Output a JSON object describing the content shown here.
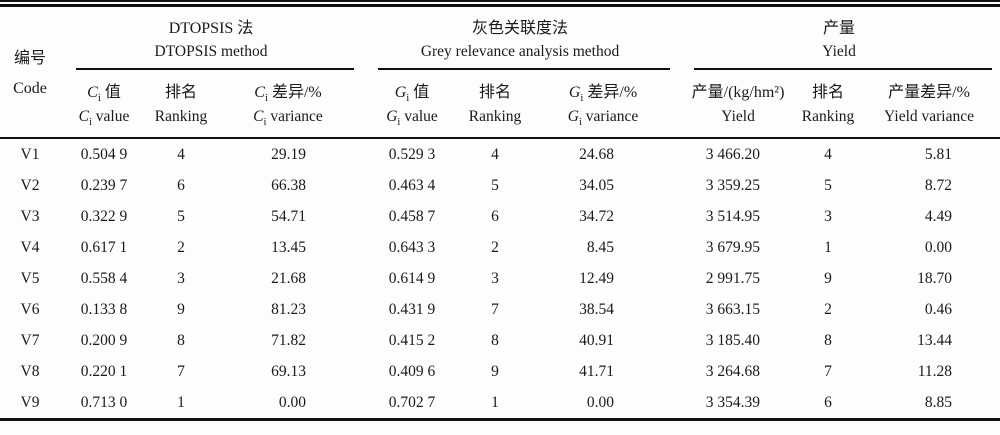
{
  "table": {
    "corner": {
      "zh": "编号",
      "en": "Code"
    },
    "groups": [
      {
        "zh": "DTOPSIS 法",
        "en": "DTOPSIS method"
      },
      {
        "zh": "灰色关联度法",
        "en": "Grey relevance analysis method"
      },
      {
        "zh": "产量",
        "en": "Yield"
      }
    ],
    "subheaders": [
      {
        "zh_sym": "C",
        "zh_sub": "i",
        "zh_rest": " 值",
        "en_sym": "C",
        "en_sub": "i",
        "en_rest": " value"
      },
      {
        "zh": "排名",
        "en": "Ranking"
      },
      {
        "zh_sym": "C",
        "zh_sub": "i",
        "zh_rest": " 差异/%",
        "en_sym": "C",
        "en_sub": "i",
        "en_rest": " variance"
      },
      {
        "zh_sym": "G",
        "zh_sub": "i",
        "zh_rest": " 值",
        "en_sym": "G",
        "en_sub": "i",
        "en_rest": " value"
      },
      {
        "zh": "排名",
        "en": "Ranking"
      },
      {
        "zh_sym": "G",
        "zh_sub": "i",
        "zh_rest": " 差异/%",
        "en_sym": "G",
        "en_sub": "i",
        "en_rest": " variance"
      },
      {
        "zh": "产量/(kg/hm²)",
        "en": "Yield"
      },
      {
        "zh": "排名",
        "en": "Ranking"
      },
      {
        "zh": "产量差异/%",
        "en": "Yield variance"
      }
    ],
    "rows": [
      {
        "code": "V1",
        "values": [
          "0.504 9",
          "4",
          "29.19",
          "0.529 3",
          "4",
          "24.68",
          "3 466.20",
          "4",
          "5.81"
        ]
      },
      {
        "code": "V2",
        "values": [
          "0.239 7",
          "6",
          "66.38",
          "0.463 4",
          "5",
          "34.05",
          "3 359.25",
          "5",
          "8.72"
        ]
      },
      {
        "code": "V3",
        "values": [
          "0.322 9",
          "5",
          "54.71",
          "0.458 7",
          "6",
          "34.72",
          "3 514.95",
          "3",
          "4.49"
        ]
      },
      {
        "code": "V4",
        "values": [
          "0.617 1",
          "2",
          "13.45",
          "0.643 3",
          "2",
          "8.45",
          "3 679.95",
          "1",
          "0.00"
        ]
      },
      {
        "code": "V5",
        "values": [
          "0.558 4",
          "3",
          "21.68",
          "0.614 9",
          "3",
          "12.49",
          "2 991.75",
          "9",
          "18.70"
        ]
      },
      {
        "code": "V6",
        "values": [
          "0.133 8",
          "9",
          "81.23",
          "0.431 9",
          "7",
          "38.54",
          "3 663.15",
          "2",
          "0.46"
        ]
      },
      {
        "code": "V7",
        "values": [
          "0.200 9",
          "8",
          "71.82",
          "0.415 2",
          "8",
          "40.91",
          "3 185.40",
          "8",
          "13.44"
        ]
      },
      {
        "code": "V8",
        "values": [
          "0.220 1",
          "7",
          "69.13",
          "0.409 6",
          "9",
          "41.71",
          "3 264.68",
          "7",
          "11.28"
        ]
      },
      {
        "code": "V9",
        "values": [
          "0.713 0",
          "1",
          "0.00",
          "0.702 7",
          "1",
          "0.00",
          "3 354.39",
          "6",
          "8.85"
        ]
      }
    ],
    "colors": {
      "text": "#1a1a1a",
      "rule": "#111111",
      "background": "#fdfdfd"
    }
  }
}
